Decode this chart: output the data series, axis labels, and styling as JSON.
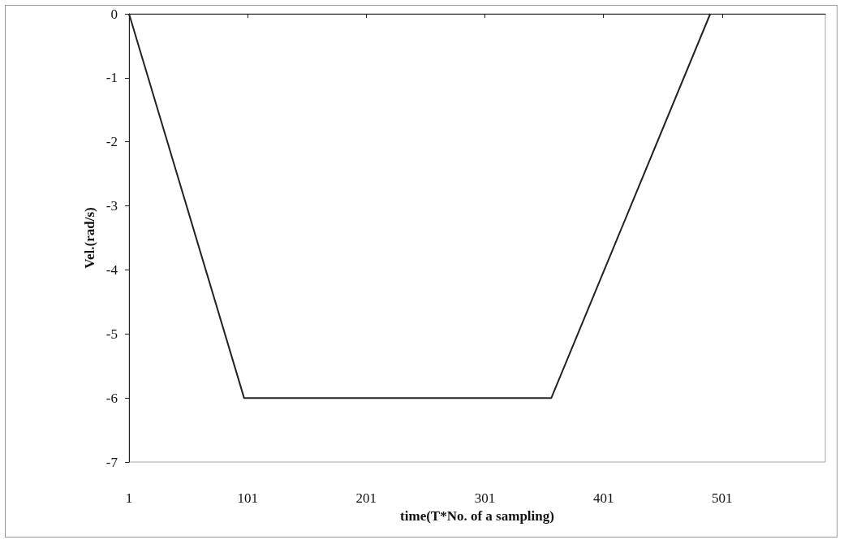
{
  "chart_data": {
    "type": "line",
    "xlabel": "time(T*No. of a sampling)",
    "ylabel": "Vel.(rad/s)",
    "x": [
      1,
      98,
      357,
      491
    ],
    "values": [
      0,
      -6,
      -6,
      0
    ],
    "color": "#222222",
    "xlim": [
      1,
      588
    ],
    "xticks": [
      1,
      101,
      201,
      301,
      401,
      501
    ],
    "ylim": [
      -7,
      0
    ],
    "yticks": [
      -7,
      -6,
      -5,
      -4,
      -3,
      -2,
      -1,
      0
    ],
    "grid": false,
    "marker": "none",
    "line_style": "solid"
  }
}
